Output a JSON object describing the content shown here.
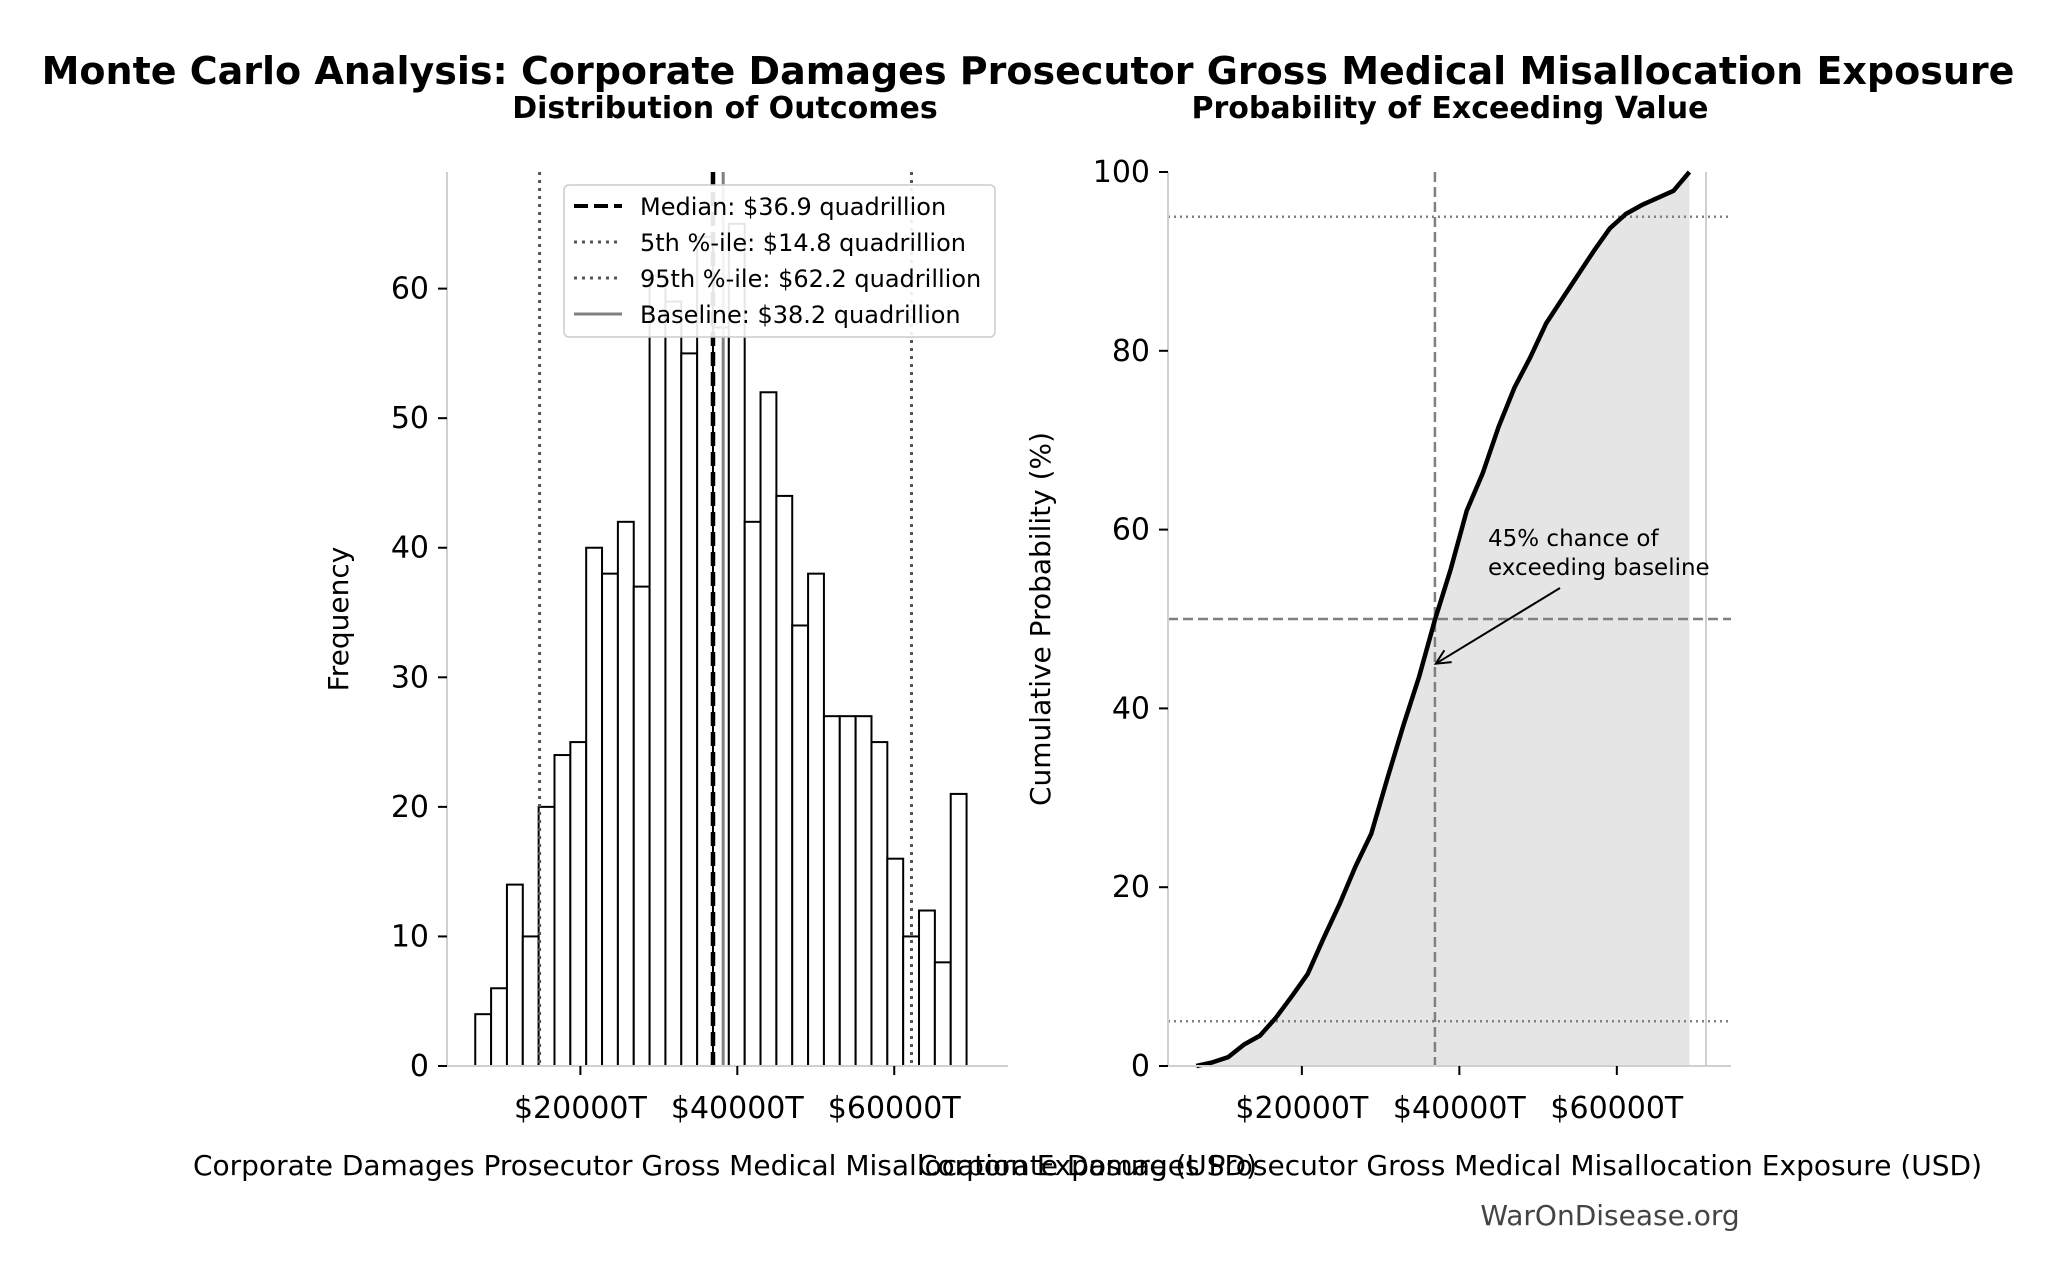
{
  "figure": {
    "title": "Monte Carlo Analysis: Corporate Damages Prosecutor Gross Medical Misallocation Exposure",
    "watermark": "WarOnDisease.org"
  },
  "chart_data": [
    {
      "type": "bar",
      "subtype": "histogram",
      "title": "Distribution of Outcomes",
      "xlabel": "Corporate Damages Prosecutor Gross Medical Misallocation Exposure (USD)",
      "ylabel": "Frequency",
      "x_unit": "T USD",
      "xlim": [
        3000,
        74500
      ],
      "ylim": [
        0,
        69
      ],
      "xticks": [
        20000,
        40000,
        60000
      ],
      "xtick_labels": [
        "$20000T",
        "$40000T",
        "$60000T"
      ],
      "yticks": [
        0,
        10,
        20,
        30,
        40,
        50,
        60
      ],
      "bins": {
        "start": 6600,
        "width": 2020,
        "counts": [
          4,
          6,
          14,
          10,
          20,
          24,
          25,
          40,
          38,
          42,
          37,
          61,
          59,
          55,
          64,
          57,
          65,
          42,
          52,
          44,
          34,
          38,
          27,
          27,
          27,
          25,
          16,
          10,
          12,
          8,
          21
        ]
      },
      "reference_lines": [
        {
          "name": "Median: $36.9 quadrillion",
          "x": 36900,
          "style": "dashed",
          "color": "#000000"
        },
        {
          "name": "5th %-ile: $14.8 quadrillion",
          "x": 14800,
          "style": "dotted",
          "color": "#555555"
        },
        {
          "name": "95th %-ile: $62.2 quadrillion",
          "x": 62200,
          "style": "dotted",
          "color": "#555555"
        },
        {
          "name": "Baseline: $38.2 quadrillion",
          "x": 38200,
          "style": "solid",
          "color": "#808080"
        }
      ],
      "legend_position": "top-right",
      "grid": false
    },
    {
      "type": "area",
      "subtype": "cumulative distribution",
      "title": "Probability of Exceeding Value",
      "xlabel": "Corporate Damages Prosecutor Gross Medical Misallocation Exposure (USD)",
      "ylabel": "Cumulative Probability (%)",
      "x_unit": "T USD",
      "xlim": [
        3000,
        74500
      ],
      "ylim": [
        0,
        100
      ],
      "xticks": [
        20000,
        40000,
        60000
      ],
      "xtick_labels": [
        "$20000T",
        "$40000T",
        "$60000T"
      ],
      "yticks": [
        0,
        20,
        40,
        60,
        80,
        100
      ],
      "x": [
        6600,
        8620,
        10640,
        12660,
        14680,
        16700,
        18720,
        20740,
        22760,
        24780,
        26800,
        28820,
        30840,
        32860,
        34880,
        36900,
        38920,
        40940,
        42960,
        44980,
        47000,
        49020,
        51040,
        53060,
        55080,
        57100,
        59120,
        61140,
        63160,
        65180,
        67200,
        69220
      ],
      "y": [
        0,
        0.4,
        1.0,
        2.4,
        3.4,
        5.4,
        7.8,
        10.3,
        14.3,
        18.1,
        22.3,
        26.0,
        32.1,
        38.0,
        43.5,
        49.9,
        55.6,
        62.1,
        66.3,
        71.5,
        75.9,
        79.3,
        83.1,
        85.8,
        88.5,
        91.2,
        93.7,
        95.3,
        96.3,
        97.1,
        97.9,
        100.0
      ],
      "reference_lines": [
        {
          "orientation": "vertical",
          "x": 36900,
          "style": "dashed",
          "color": "#808080"
        },
        {
          "orientation": "horizontal",
          "y": 50,
          "style": "dashed",
          "color": "#808080"
        },
        {
          "orientation": "horizontal",
          "y": 5,
          "style": "dotted",
          "color": "#808080"
        },
        {
          "orientation": "horizontal",
          "y": 95,
          "style": "dotted",
          "color": "#808080"
        }
      ],
      "annotation": {
        "lines": [
          "45% chance of",
          "exceeding baseline"
        ],
        "arrow_to": {
          "x": 37000,
          "y": 45
        }
      },
      "fill_color": "#e5e5e5",
      "grid": false
    }
  ]
}
